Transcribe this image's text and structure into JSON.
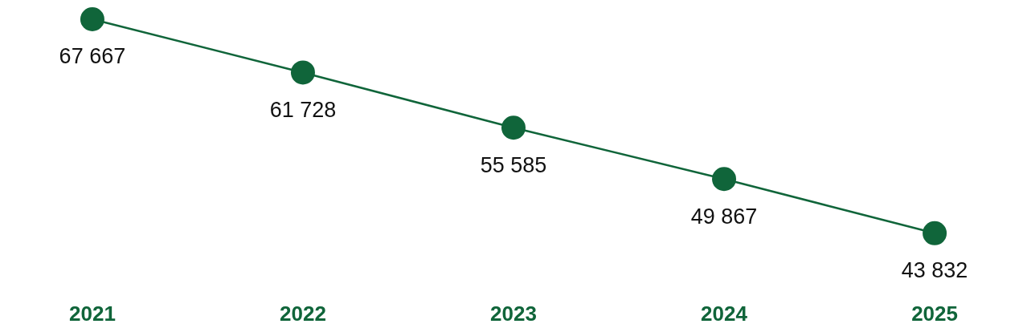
{
  "chart_data": {
    "type": "line",
    "categories": [
      "2021",
      "2022",
      "2023",
      "2024",
      "2025"
    ],
    "series": [
      {
        "color": "#10653a",
        "values": [
          67667,
          61728,
          55585,
          49867,
          43832
        ],
        "value_labels": [
          "67 667",
          "61 728",
          "55 585",
          "49 867",
          "43 832"
        ]
      }
    ],
    "marker": "circle",
    "line_style": "solid",
    "tick_labels": "x"
  }
}
